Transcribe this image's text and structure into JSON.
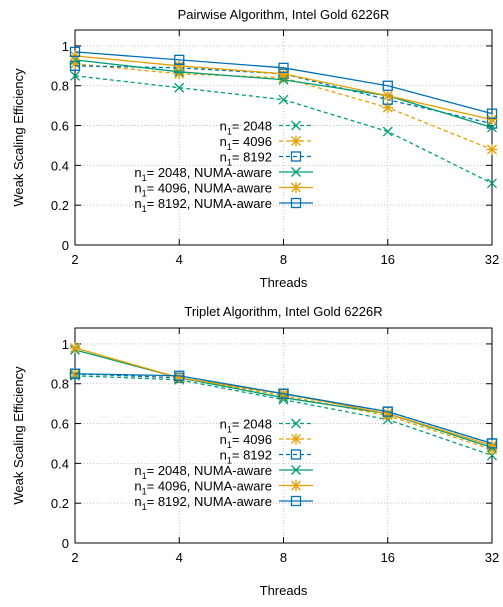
{
  "chart_data": [
    {
      "type": "line",
      "title": "Pairwise Algorithm, Intel Gold 6226R",
      "xlabel": "Threads",
      "ylabel": "Weak Scaling Efficiency",
      "xscale": "log2",
      "x": [
        2,
        4,
        8,
        16,
        32
      ],
      "x_ticks": [
        "2",
        "4",
        "8",
        "16",
        "32"
      ],
      "y_ticks": [
        "0",
        "0.2",
        "0.4",
        "0.6",
        "0.8",
        "1"
      ],
      "ylim": [
        0,
        1.08
      ],
      "grid": true,
      "legend_position": "bottom-right",
      "series": [
        {
          "name": "n1= 2048",
          "sub": "1",
          "values": [
            0.85,
            0.79,
            0.73,
            0.57,
            0.31
          ],
          "color": "#009e73",
          "marker": "x",
          "dashed": true
        },
        {
          "name": "n1= 4096",
          "sub": "1",
          "values": [
            0.91,
            0.86,
            0.84,
            0.69,
            0.48
          ],
          "color": "#e69f00",
          "marker": "star",
          "dashed": true
        },
        {
          "name": "n1= 8192",
          "sub": "1",
          "values": [
            0.9,
            0.89,
            0.86,
            0.73,
            0.61
          ],
          "color": "#0072b2",
          "marker": "square",
          "dashed": true
        },
        {
          "name": "n1= 2048, NUMA-aware",
          "sub": "1",
          "values": [
            0.93,
            0.87,
            0.83,
            0.75,
            0.59
          ],
          "color": "#009e73",
          "marker": "x",
          "dashed": false
        },
        {
          "name": "n1= 4096, NUMA-aware",
          "sub": "1",
          "values": [
            0.95,
            0.9,
            0.86,
            0.75,
            0.63
          ],
          "color": "#e69f00",
          "marker": "star",
          "dashed": false
        },
        {
          "name": "n1= 8192, NUMA-aware",
          "sub": "1",
          "values": [
            0.97,
            0.93,
            0.89,
            0.8,
            0.66
          ],
          "color": "#0072b2",
          "marker": "square",
          "dashed": false
        }
      ]
    },
    {
      "type": "line",
      "title": "Triplet Algorithm, Intel Gold 6226R",
      "xlabel": "Threads",
      "ylabel": "Weak Scaling Efficiency",
      "xscale": "log2",
      "x": [
        2,
        4,
        8,
        16,
        32
      ],
      "x_ticks": [
        "2",
        "4",
        "8",
        "16",
        "32"
      ],
      "y_ticks": [
        "0",
        "0.2",
        "0.4",
        "0.6",
        "0.8",
        "1"
      ],
      "ylim": [
        0,
        1.08
      ],
      "grid": true,
      "legend_position": "bottom-right",
      "series": [
        {
          "name": "n1= 2048",
          "sub": "1",
          "values": [
            0.84,
            0.82,
            0.72,
            0.62,
            0.44
          ],
          "color": "#009e73",
          "marker": "x",
          "dashed": true
        },
        {
          "name": "n1= 4096",
          "sub": "1",
          "values": [
            0.85,
            0.83,
            0.74,
            0.64,
            0.47
          ],
          "color": "#e69f00",
          "marker": "star",
          "dashed": true
        },
        {
          "name": "n1= 8192",
          "sub": "1",
          "values": [
            0.85,
            0.83,
            0.75,
            0.66,
            0.5
          ],
          "color": "#0072b2",
          "marker": "square",
          "dashed": true
        },
        {
          "name": "n1= 2048, NUMA-aware",
          "sub": "1",
          "values": [
            0.97,
            0.83,
            0.73,
            0.65,
            0.48
          ],
          "color": "#009e73",
          "marker": "x",
          "dashed": false
        },
        {
          "name": "n1= 4096, NUMA-aware",
          "sub": "1",
          "values": [
            0.98,
            0.83,
            0.75,
            0.65,
            0.49
          ],
          "color": "#e69f00",
          "marker": "star",
          "dashed": false
        },
        {
          "name": "n1= 8192, NUMA-aware",
          "sub": "1",
          "values": [
            0.85,
            0.84,
            0.75,
            0.66,
            0.5
          ],
          "color": "#0072b2",
          "marker": "square",
          "dashed": false
        }
      ]
    }
  ]
}
